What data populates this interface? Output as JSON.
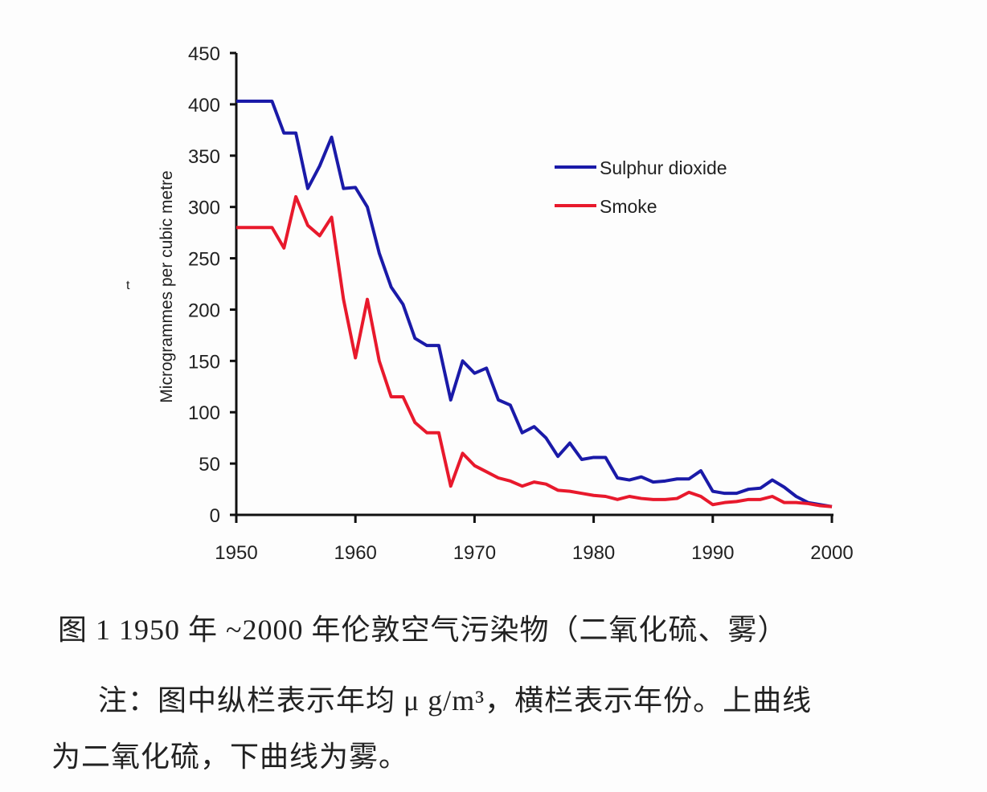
{
  "chart_data": {
    "type": "line",
    "title": "",
    "xlabel": "",
    "ylabel": "Microgrammes per cubic metre",
    "xlim": [
      1950,
      2000
    ],
    "ylim": [
      0,
      450
    ],
    "xticks": [
      1950,
      1960,
      1970,
      1980,
      1990,
      2000
    ],
    "yticks": [
      0,
      50,
      100,
      150,
      200,
      250,
      300,
      350,
      400,
      450
    ],
    "grid": false,
    "legend_position": "top-right",
    "x": [
      1950,
      1951,
      1952,
      1953,
      1954,
      1955,
      1956,
      1957,
      1958,
      1959,
      1960,
      1961,
      1962,
      1963,
      1964,
      1965,
      1966,
      1967,
      1968,
      1969,
      1970,
      1971,
      1972,
      1973,
      1974,
      1975,
      1976,
      1977,
      1978,
      1979,
      1980,
      1981,
      1982,
      1983,
      1984,
      1985,
      1986,
      1987,
      1988,
      1989,
      1990,
      1991,
      1992,
      1993,
      1994,
      1995,
      1996,
      1997,
      1998,
      1999,
      2000
    ],
    "series": [
      {
        "name": "Sulphur dioxide",
        "color": "#1a1aa8",
        "values": [
          403,
          403,
          403,
          403,
          372,
          372,
          318,
          340,
          368,
          318,
          319,
          300,
          255,
          222,
          205,
          172,
          165,
          165,
          112,
          150,
          138,
          143,
          112,
          107,
          80,
          86,
          75,
          57,
          70,
          54,
          56,
          56,
          36,
          34,
          37,
          32,
          33,
          35,
          35,
          43,
          23,
          21,
          21,
          25,
          26,
          34,
          27,
          18,
          12,
          10,
          8
        ]
      },
      {
        "name": "Smoke",
        "color": "#e8192c",
        "values": [
          280,
          280,
          280,
          280,
          260,
          310,
          282,
          272,
          290,
          210,
          153,
          210,
          150,
          115,
          115,
          90,
          80,
          80,
          28,
          60,
          48,
          42,
          36,
          33,
          28,
          32,
          30,
          24,
          23,
          21,
          19,
          18,
          15,
          18,
          16,
          15,
          15,
          16,
          22,
          18,
          10,
          12,
          13,
          15,
          15,
          18,
          12,
          12,
          11,
          9,
          8
        ]
      }
    ],
    "stray_mark": "t"
  },
  "caption": {
    "figure": "图 1   1950 年 ~2000 年伦敦空气污染物（二氧化硫、雾）",
    "note_line1": "注：图中纵栏表示年均 μ g/m³，横栏表示年份。上曲线",
    "note_line2": "为二氧化硫，下曲线为雾。"
  }
}
